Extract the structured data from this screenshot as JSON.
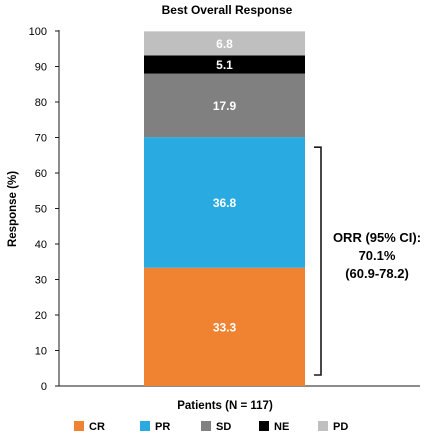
{
  "chart_data": {
    "type": "bar",
    "stacked": true,
    "title": "Best Overall Response",
    "xlabel": "Patients (N = 117)",
    "ylabel": "Response (%)",
    "ylim": [
      0,
      100
    ],
    "yticks": [
      0,
      10,
      20,
      30,
      40,
      50,
      60,
      70,
      80,
      90,
      100
    ],
    "categories": [
      "Patients (N = 117)"
    ],
    "series": [
      {
        "name": "CR",
        "values": [
          33.3
        ],
        "label": "33.3",
        "color": "#F08332"
      },
      {
        "name": "PR",
        "values": [
          36.8
        ],
        "label": "36.8",
        "color": "#29ABE2"
      },
      {
        "name": "SD",
        "values": [
          17.9
        ],
        "label": "17.9",
        "color": "#808080"
      },
      {
        "name": "NE",
        "values": [
          5.1
        ],
        "label": "5.1",
        "color": "#000000"
      },
      {
        "name": "PD",
        "values": [
          6.8
        ],
        "label": "6.8",
        "color": "#BFBFBF"
      }
    ],
    "annotation": {
      "lines": [
        "ORR (95% CI):",
        "70.1%",
        "(60.9-78.2)"
      ],
      "spans_series": [
        "CR",
        "PR"
      ]
    },
    "legend_position": "bottom",
    "grid": false
  }
}
